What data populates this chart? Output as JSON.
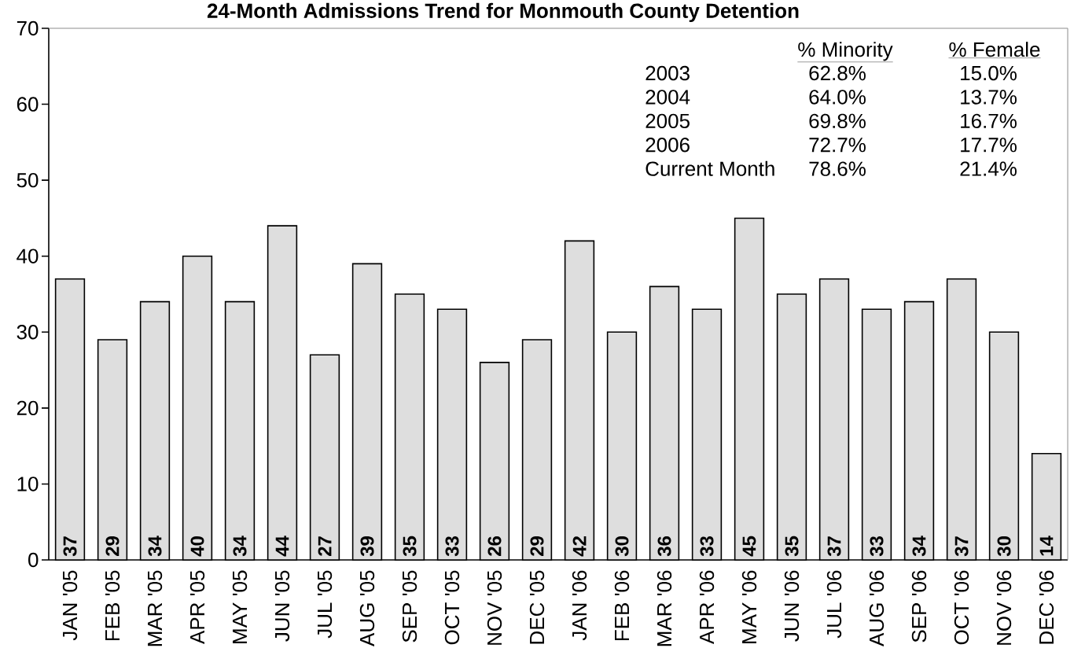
{
  "chart_data": {
    "type": "bar",
    "title": "24-Month Admissions Trend for Monmouth County Detention",
    "categories": [
      "JAN '05",
      "FEB '05",
      "MAR '05",
      "APR '05",
      "MAY '05",
      "JUN '05",
      "JUL '05",
      "AUG '05",
      "SEP '05",
      "OCT '05",
      "NOV '05",
      "DEC '05",
      "JAN '06",
      "FEB '06",
      "MAR '06",
      "APR '06",
      "MAY '06",
      "JUN '06",
      "JUL '06",
      "AUG '06",
      "SEP '06",
      "OCT '06",
      "NOV '06",
      "DEC '06"
    ],
    "values": [
      37,
      29,
      34,
      40,
      34,
      44,
      27,
      39,
      35,
      33,
      26,
      29,
      42,
      30,
      36,
      33,
      45,
      35,
      37,
      33,
      34,
      37,
      30,
      14
    ],
    "color": "#dedede",
    "ylim": [
      0,
      70
    ],
    "yticks": [
      0,
      10,
      20,
      30,
      40,
      50,
      60,
      70
    ],
    "data_labels": true,
    "annotations": [
      "% Minority",
      "% Female",
      "2003",
      "62.8%",
      "15.0%",
      "2004",
      "64.0%",
      "13.7%",
      "2005",
      "69.8%",
      "16.7%",
      "2006",
      "72.7%",
      "17.7%",
      "Current Month",
      "78.6%",
      "21.4%"
    ]
  }
}
